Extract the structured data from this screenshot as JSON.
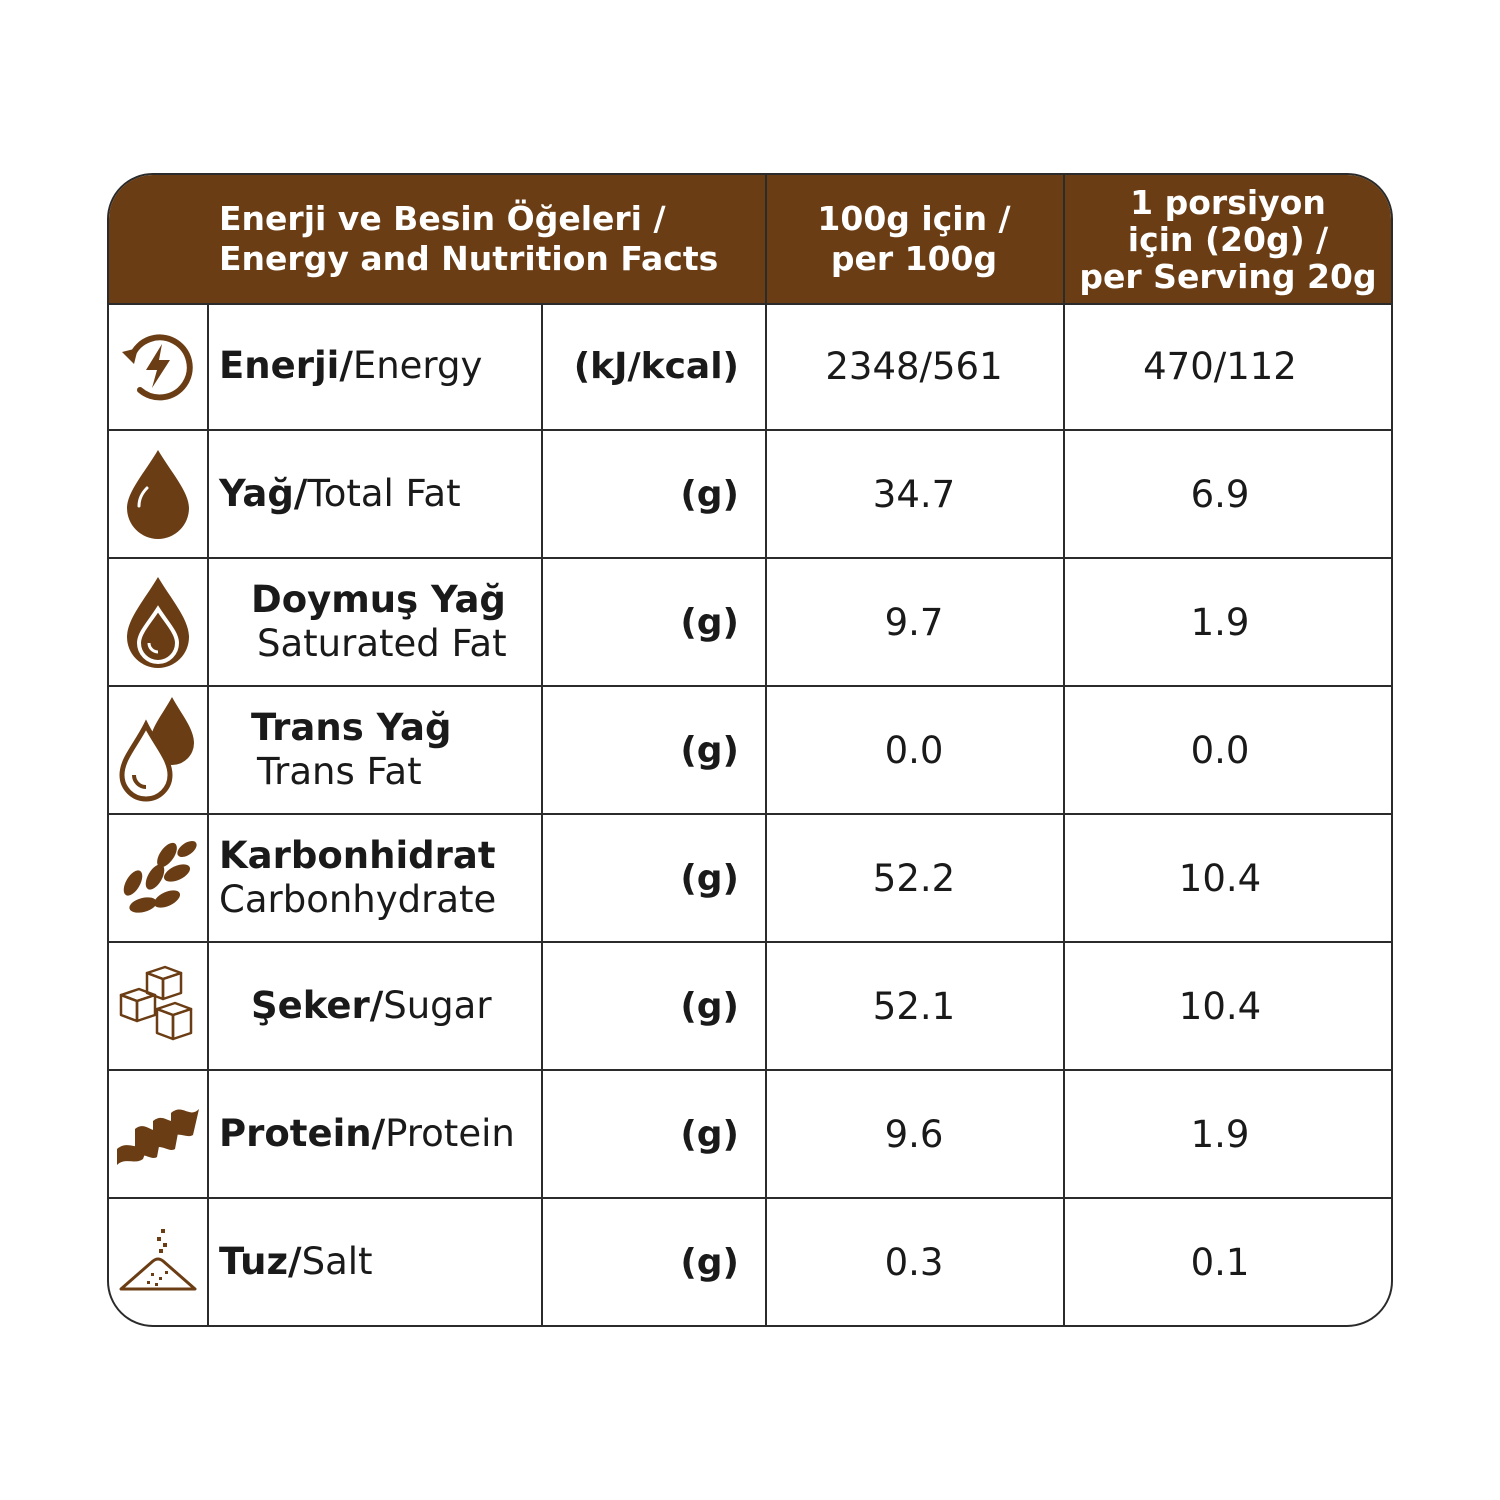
{
  "colors": {
    "header_bg": "#6b3d14",
    "header_text": "#ffffff",
    "icon": "#6b3d14",
    "border": "#2b2b2b"
  },
  "header": {
    "name_line1": "Enerji ve Besin Öğeleri /",
    "name_line2": "Energy and Nutrition Facts",
    "per100_line1": "100g için /",
    "per100_line2": "per 100g",
    "serving_line1": "1 porsiyon",
    "serving_line2": "için (20g) /",
    "serving_line3": "per Serving 20g"
  },
  "rows": [
    {
      "icon": "energy-icon",
      "tr": "Enerji/",
      "en": "Energy",
      "unit": "(kJ/kcal)",
      "per100": "2348/561",
      "serving": "470/112"
    },
    {
      "icon": "fat-drop-icon",
      "tr": "Yağ/",
      "en": "Total Fat",
      "unit": "(g)",
      "per100": "34.7",
      "serving": "6.9"
    },
    {
      "icon": "saturated-fat-drop-icon",
      "tr": "Doymuş Yağ",
      "en": "Saturated Fat",
      "unit": "(g)",
      "per100": "9.7",
      "serving": "1.9"
    },
    {
      "icon": "trans-fat-drops-icon",
      "tr": "Trans Yağ",
      "en": "Trans Fat",
      "unit": "(g)",
      "per100": "0.0",
      "serving": "0.0"
    },
    {
      "icon": "grain-icon",
      "tr": "Karbonhidrat",
      "en": "Carbonhydrate",
      "unit": "(g)",
      "per100": "52.2",
      "serving": "10.4"
    },
    {
      "icon": "sugar-cubes-icon",
      "tr": "Şeker/",
      "en": "Sugar",
      "unit": "(g)",
      "per100": "52.1",
      "serving": "10.4"
    },
    {
      "icon": "protein-icon",
      "tr": "Protein/",
      "en": "Protein",
      "unit": "(g)",
      "per100": "9.6",
      "serving": "1.9"
    },
    {
      "icon": "salt-pile-icon",
      "tr": "Tuz/",
      "en": "Salt",
      "unit": "(g)",
      "per100": "0.3",
      "serving": "0.1"
    }
  ]
}
